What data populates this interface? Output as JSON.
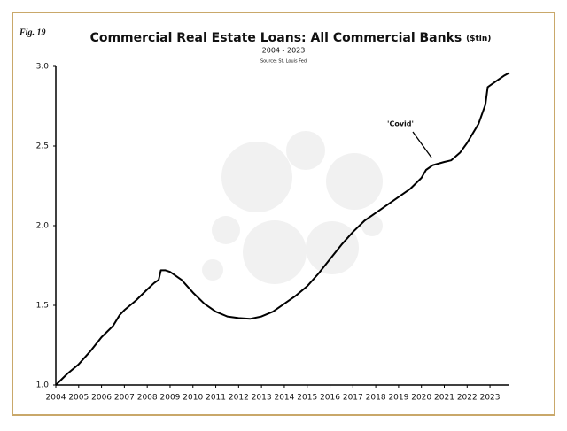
{
  "chart_data": {
    "type": "line",
    "figure_label": "Fig. 19",
    "title": "Commercial Real Estate Loans: All Commercial Banks",
    "title_unit": "($tln)",
    "subtitle": "2004 - 2023",
    "source": "Source: St. Louis Fed",
    "annotation": "'Covid'",
    "color": "#000000",
    "x": [
      2004.0,
      2004.5,
      2005.0,
      2005.5,
      2006.0,
      2006.5,
      2006.8,
      2007.0,
      2007.5,
      2008.0,
      2008.3,
      2008.5,
      2008.6,
      2008.8,
      2009.0,
      2009.5,
      2010.0,
      2010.5,
      2011.0,
      2011.5,
      2012.0,
      2012.5,
      2013.0,
      2013.5,
      2014.0,
      2014.5,
      2015.0,
      2015.5,
      2016.0,
      2016.5,
      2017.0,
      2017.5,
      2018.0,
      2018.5,
      2019.0,
      2019.5,
      2020.0,
      2020.2,
      2020.5,
      2021.0,
      2021.3,
      2021.7,
      2022.0,
      2022.5,
      2022.8,
      2022.9,
      2023.0,
      2023.3,
      2023.6,
      2023.85
    ],
    "values": [
      1.0,
      1.07,
      1.13,
      1.21,
      1.3,
      1.37,
      1.44,
      1.47,
      1.53,
      1.6,
      1.64,
      1.66,
      1.72,
      1.72,
      1.71,
      1.66,
      1.58,
      1.51,
      1.46,
      1.43,
      1.42,
      1.415,
      1.43,
      1.46,
      1.51,
      1.56,
      1.62,
      1.7,
      1.79,
      1.88,
      1.96,
      2.03,
      2.08,
      2.13,
      2.18,
      2.23,
      2.3,
      2.35,
      2.38,
      2.4,
      2.41,
      2.46,
      2.52,
      2.64,
      2.76,
      2.87,
      2.88,
      2.91,
      2.94,
      2.96
    ],
    "xlim": [
      2004,
      2023.85
    ],
    "xticks": [
      2004,
      2005,
      2006,
      2007,
      2008,
      2009,
      2010,
      2011,
      2012,
      2013,
      2014,
      2015,
      2016,
      2017,
      2018,
      2019,
      2020,
      2021,
      2022,
      2023
    ],
    "ylim": [
      1,
      3
    ],
    "yticks": [
      {
        "value": 1,
        "label": "1.0"
      },
      1.5,
      {
        "value": 2,
        "label": "2.0"
      },
      2.5,
      {
        "value": 3,
        "label": "3.0"
      }
    ],
    "grid": false
  }
}
